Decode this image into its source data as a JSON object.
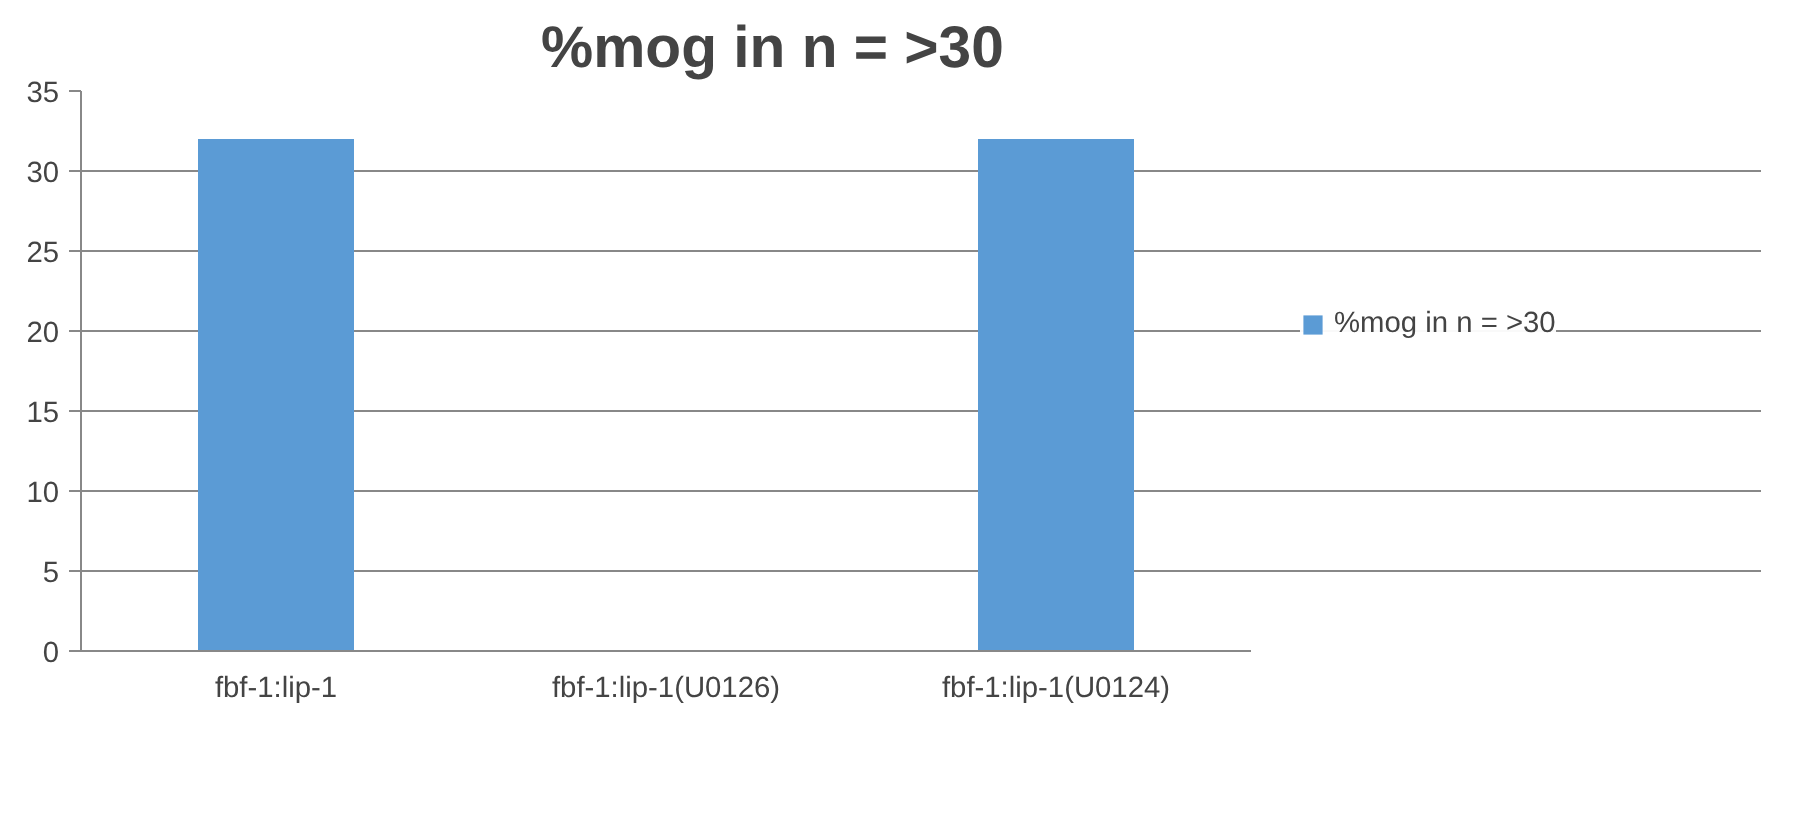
{
  "chart_data": {
    "type": "bar",
    "title": "%mog in n = >30",
    "categories": [
      "fbf-1:lip-1",
      "fbf-1:lip-1(U0126)",
      "fbf-1:lip-1(U0124)"
    ],
    "series": [
      {
        "name": "%mog in n = >30",
        "color": "#5b9bd5",
        "values": [
          32,
          0,
          32
        ]
      }
    ],
    "ylim": [
      0,
      35
    ],
    "yticks": [
      0,
      5,
      10,
      15,
      20,
      25,
      30,
      35
    ],
    "grid": "y",
    "legend": "right"
  }
}
